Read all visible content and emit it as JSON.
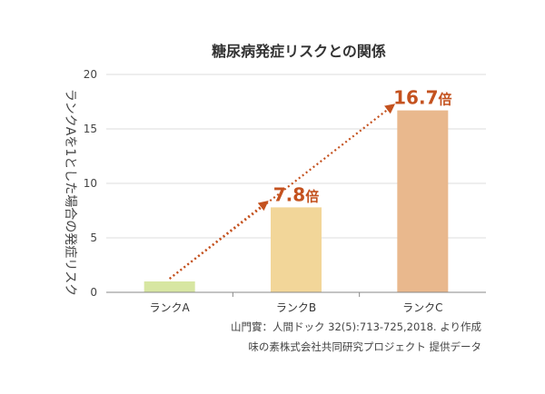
{
  "chart_data": {
    "type": "bar",
    "title": "糖尿病発症リスクとの関係",
    "ylabel": "ランクAを1とした場合の発症リスク",
    "xlabel": "",
    "ylim": [
      0,
      20
    ],
    "yticks": [
      0,
      5,
      10,
      15,
      20
    ],
    "categories": [
      "ランクA",
      "ランクB",
      "ランクC"
    ],
    "values": [
      1,
      7.8,
      16.7
    ],
    "bar_colors": [
      "#d7e6a2",
      "#f2d699",
      "#e9b88d"
    ],
    "data_labels": [
      {
        "value": "",
        "unit": ""
      },
      {
        "value": "7.8",
        "unit": "倍"
      },
      {
        "value": "16.7",
        "unit": "倍"
      }
    ],
    "arrow_color": "#c4521f",
    "grid": "horizontal",
    "legend": "none"
  },
  "source": {
    "line1": "山門實：人間ドック 32(5):713-725,2018. より作成",
    "line2": "味の素株式会社共同研究プロジェクト 提供データ"
  }
}
